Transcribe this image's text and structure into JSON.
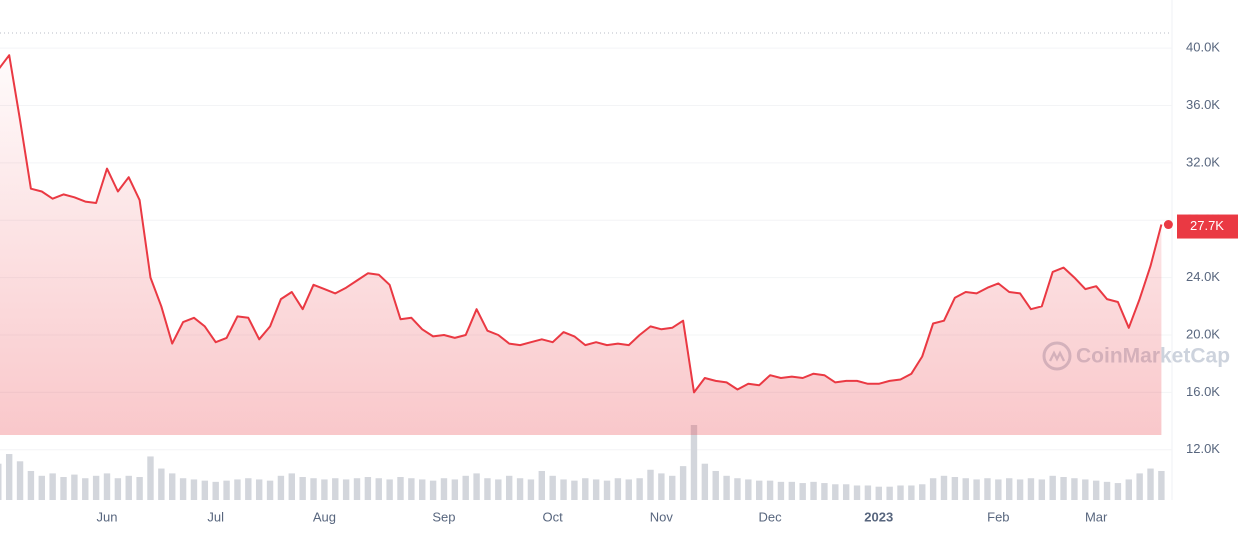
{
  "chart_data": {
    "type": "line",
    "watermark": "CoinMarketCap",
    "categories": [
      null,
      null,
      null,
      null,
      null,
      null,
      null,
      null,
      null,
      null,
      "Jun",
      null,
      null,
      null,
      null,
      null,
      null,
      null,
      null,
      null,
      "Jul",
      null,
      null,
      null,
      null,
      null,
      null,
      null,
      null,
      null,
      "Aug",
      null,
      null,
      null,
      null,
      null,
      null,
      null,
      null,
      null,
      null,
      "Sep",
      null,
      null,
      null,
      null,
      null,
      null,
      null,
      null,
      null,
      "Oct",
      null,
      null,
      null,
      null,
      null,
      null,
      null,
      null,
      null,
      "Nov",
      null,
      null,
      null,
      null,
      null,
      null,
      null,
      null,
      null,
      "Dec",
      null,
      null,
      null,
      null,
      null,
      null,
      null,
      null,
      null,
      "2023",
      null,
      null,
      null,
      null,
      null,
      null,
      null,
      null,
      null,
      null,
      "Feb",
      null,
      null,
      null,
      null,
      null,
      null,
      null,
      null,
      "Mar",
      null,
      null,
      null,
      null,
      null,
      null
    ],
    "series": [
      {
        "color": "#ea3943",
        "values": [
          38500,
          39500,
          35000,
          30200,
          30000,
          29500,
          29800,
          29600,
          29300,
          29200,
          31600,
          30000,
          31000,
          29400,
          24000,
          22000,
          19400,
          20900,
          21200,
          20600,
          19500,
          19800,
          21300,
          21200,
          19700,
          20600,
          22500,
          23000,
          21800,
          23500,
          23200,
          22900,
          23300,
          23800,
          24300,
          24200,
          23500,
          21100,
          21200,
          20400,
          19900,
          20000,
          19800,
          20000,
          21800,
          20300,
          20000,
          19400,
          19300,
          19500,
          19700,
          19500,
          20200,
          19900,
          19300,
          19500,
          19300,
          19400,
          19300,
          20000,
          20600,
          20400,
          20500,
          21000,
          16000,
          17000,
          16800,
          16700,
          16200,
          16600,
          16500,
          17200,
          17000,
          17100,
          17000,
          17300,
          17200,
          16700,
          16800,
          16800,
          16600,
          16600,
          16800,
          16900,
          17300,
          18500,
          20800,
          21000,
          22600,
          23000,
          22900,
          23300,
          23600,
          23000,
          22900,
          21800,
          22000,
          24400,
          24700,
          24000,
          23200,
          23400,
          22500,
          22300,
          20500,
          22500,
          24800,
          27700
        ],
        "value_labels": [
          null,
          null,
          null,
          null,
          null,
          null,
          null,
          null,
          null,
          null,
          null,
          null,
          null,
          null,
          null,
          null,
          null,
          null,
          null,
          null,
          null,
          null,
          null,
          null,
          null,
          null,
          null,
          null,
          null,
          null,
          null,
          null,
          null,
          null,
          null,
          null,
          null,
          null,
          null,
          null,
          null,
          null,
          null,
          null,
          null,
          null,
          null,
          null,
          null,
          null,
          null,
          null,
          null,
          null,
          null,
          null,
          null,
          null,
          null,
          null,
          null,
          null,
          null,
          null,
          null,
          null,
          null,
          null,
          null,
          null,
          null,
          null,
          null,
          null,
          null,
          null,
          null,
          null,
          null,
          null,
          null,
          null,
          null,
          null,
          null,
          null,
          null,
          null,
          null,
          null,
          null,
          null,
          null,
          null,
          null,
          null,
          null,
          null,
          null,
          null,
          null,
          null,
          null,
          null,
          null,
          null,
          null,
          "27.7K"
        ]
      }
    ],
    "volume": {
      "color": "#d3d6dc",
      "values": [
        30,
        38,
        32,
        24,
        20,
        22,
        19,
        21,
        18,
        20,
        22,
        18,
        20,
        19,
        36,
        26,
        22,
        18,
        17,
        16,
        15,
        16,
        17,
        18,
        17,
        16,
        20,
        22,
        19,
        18,
        17,
        18,
        17,
        18,
        19,
        18,
        17,
        19,
        18,
        17,
        16,
        18,
        17,
        20,
        22,
        18,
        17,
        20,
        18,
        17,
        24,
        20,
        17,
        16,
        18,
        17,
        16,
        18,
        17,
        18,
        25,
        22,
        20,
        28,
        62,
        30,
        24,
        20,
        18,
        17,
        16,
        16,
        15,
        15,
        14,
        15,
        14,
        13,
        13,
        12,
        12,
        11,
        11,
        12,
        12,
        13,
        18,
        20,
        19,
        18,
        17,
        18,
        17,
        18,
        17,
        18,
        17,
        20,
        19,
        18,
        17,
        16,
        15,
        14,
        17,
        22,
        26,
        24
      ]
    },
    "ylim": [
      8500,
      41050
    ],
    "yticks": [
      {
        "value": 12000,
        "label": "12.0K"
      },
      {
        "value": 16000,
        "label": "16.0K"
      },
      {
        "value": 20000,
        "label": "20.0K"
      },
      {
        "value": 24000,
        "label": "24.0K"
      },
      {
        "value": 28000,
        "label": "28.0K"
      },
      {
        "value": 32000,
        "label": "32.0K"
      },
      {
        "value": 36000,
        "label": "36.0K"
      },
      {
        "value": 40000,
        "label": "40.0K"
      }
    ],
    "grid": true
  }
}
